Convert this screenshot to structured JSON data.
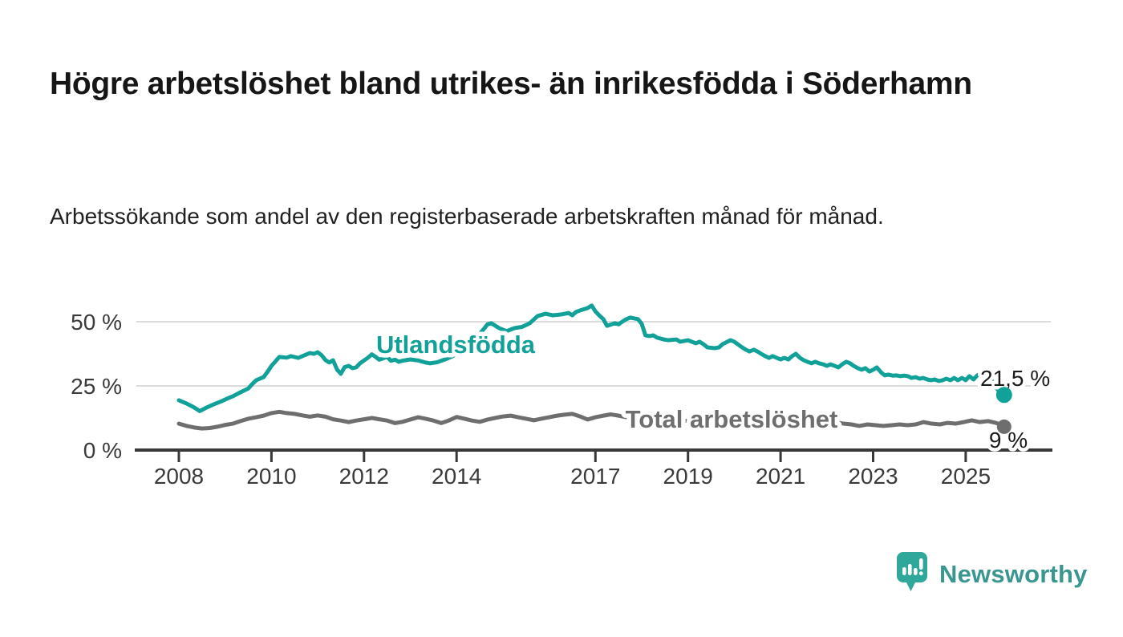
{
  "header": {
    "title": "Högre arbetslöshet bland utrikes- än inrikesfödda i Söderhamn",
    "subtitle": "Arbetssökande som andel av den registerbaserade arbetskraften månad för månad."
  },
  "footer": {
    "brand": "Newsworthy"
  },
  "colors": {
    "teal": "#12a198",
    "gray": "#6e6e6e",
    "axis_line": "#383838",
    "axis_text": "#3a3a3a",
    "grid": "#dcdcdc",
    "end_label_text": "#1b1b1b",
    "logo_fill": "#2fa79b",
    "brand_text": "#3a978f"
  },
  "chart_data": {
    "type": "line",
    "title": "Högre arbetslöshet bland utrikes- än inrikesfödda i Söderhamn",
    "subtitle": "Arbetssökande som andel av den registerbaserade arbetskraften månad för månad.",
    "legend": "inline-labels",
    "grid": "horizontal",
    "x_axis": {
      "range": [
        2007.9,
        2026.3
      ],
      "ticks": [
        2008,
        2010,
        2012,
        2014,
        2017,
        2019,
        2021,
        2023,
        2025
      ],
      "tick_labels": [
        "2008",
        "2010",
        "2012",
        "2014",
        "2017",
        "2019",
        "2021",
        "2023",
        "2025"
      ]
    },
    "y_axis": {
      "unit": "%",
      "range": [
        0,
        58
      ],
      "ticks": [
        0,
        25,
        50
      ],
      "tick_labels": [
        "0 %",
        "25 %",
        "50 %"
      ]
    },
    "series": [
      {
        "id": "utlandsfodda",
        "name": "Utlandsfödda",
        "color": "#12a198",
        "end_label": "21,5 %",
        "end_value": 21.5,
        "points": [
          [
            2008.0,
            19.4
          ],
          [
            2008.17,
            18.1
          ],
          [
            2008.33,
            16.6
          ],
          [
            2008.45,
            15.2
          ],
          [
            2008.58,
            16.4
          ],
          [
            2008.75,
            17.8
          ],
          [
            2008.92,
            19.0
          ],
          [
            2009.0,
            19.7
          ],
          [
            2009.17,
            21.0
          ],
          [
            2009.33,
            22.5
          ],
          [
            2009.5,
            24.0
          ],
          [
            2009.58,
            25.6
          ],
          [
            2009.67,
            27.2
          ],
          [
            2009.83,
            28.4
          ],
          [
            2009.92,
            30.6
          ],
          [
            2010.0,
            32.8
          ],
          [
            2010.08,
            34.4
          ],
          [
            2010.17,
            36.3
          ],
          [
            2010.33,
            36.0
          ],
          [
            2010.42,
            36.6
          ],
          [
            2010.58,
            35.9
          ],
          [
            2010.75,
            37.2
          ],
          [
            2010.83,
            37.8
          ],
          [
            2010.92,
            37.5
          ],
          [
            2011.0,
            38.1
          ],
          [
            2011.08,
            37.0
          ],
          [
            2011.17,
            35.0
          ],
          [
            2011.25,
            34.1
          ],
          [
            2011.33,
            35.0
          ],
          [
            2011.42,
            31.3
          ],
          [
            2011.5,
            29.7
          ],
          [
            2011.58,
            32.3
          ],
          [
            2011.67,
            32.8
          ],
          [
            2011.75,
            31.9
          ],
          [
            2011.83,
            32.2
          ],
          [
            2011.92,
            33.9
          ],
          [
            2012.0,
            34.9
          ],
          [
            2012.08,
            35.9
          ],
          [
            2012.17,
            37.3
          ],
          [
            2012.25,
            36.3
          ],
          [
            2012.33,
            35.2
          ],
          [
            2012.42,
            35.8
          ],
          [
            2012.5,
            36.3
          ],
          [
            2012.58,
            34.8
          ],
          [
            2012.67,
            35.2
          ],
          [
            2012.75,
            34.4
          ],
          [
            2012.83,
            34.8
          ],
          [
            2013.0,
            35.3
          ],
          [
            2013.17,
            34.9
          ],
          [
            2013.33,
            34.1
          ],
          [
            2013.42,
            33.8
          ],
          [
            2013.58,
            34.2
          ],
          [
            2013.75,
            35.3
          ],
          [
            2013.92,
            36.6
          ],
          [
            2014.08,
            38.8
          ],
          [
            2014.25,
            41.6
          ],
          [
            2014.42,
            44.4
          ],
          [
            2014.5,
            45.3
          ],
          [
            2014.58,
            47.0
          ],
          [
            2014.67,
            49.0
          ],
          [
            2014.75,
            49.4
          ],
          [
            2014.92,
            47.5
          ],
          [
            2015.08,
            46.3
          ],
          [
            2015.25,
            47.5
          ],
          [
            2015.42,
            48.0
          ],
          [
            2015.58,
            49.4
          ],
          [
            2015.75,
            52.2
          ],
          [
            2015.92,
            53.1
          ],
          [
            2016.08,
            52.5
          ],
          [
            2016.25,
            52.8
          ],
          [
            2016.42,
            53.4
          ],
          [
            2016.5,
            52.5
          ],
          [
            2016.58,
            53.8
          ],
          [
            2016.67,
            54.4
          ],
          [
            2016.83,
            55.3
          ],
          [
            2016.92,
            56.3
          ],
          [
            2017.0,
            54.0
          ],
          [
            2017.08,
            52.5
          ],
          [
            2017.17,
            51.0
          ],
          [
            2017.25,
            48.4
          ],
          [
            2017.42,
            49.4
          ],
          [
            2017.5,
            49.0
          ],
          [
            2017.58,
            50.0
          ],
          [
            2017.67,
            51.0
          ],
          [
            2017.75,
            51.6
          ],
          [
            2017.92,
            51.0
          ],
          [
            2018.0,
            49.2
          ],
          [
            2018.08,
            44.7
          ],
          [
            2018.17,
            44.4
          ],
          [
            2018.25,
            44.7
          ],
          [
            2018.33,
            43.8
          ],
          [
            2018.5,
            43.0
          ],
          [
            2018.58,
            42.8
          ],
          [
            2018.75,
            43.1
          ],
          [
            2018.83,
            42.2
          ],
          [
            2019.0,
            42.8
          ],
          [
            2019.08,
            42.2
          ],
          [
            2019.17,
            41.6
          ],
          [
            2019.25,
            42.2
          ],
          [
            2019.33,
            41.3
          ],
          [
            2019.42,
            40.0
          ],
          [
            2019.58,
            39.7
          ],
          [
            2019.67,
            40.0
          ],
          [
            2019.75,
            41.3
          ],
          [
            2019.92,
            42.8
          ],
          [
            2020.0,
            42.2
          ],
          [
            2020.17,
            40.0
          ],
          [
            2020.25,
            39.1
          ],
          [
            2020.33,
            38.4
          ],
          [
            2020.42,
            39.1
          ],
          [
            2020.5,
            38.4
          ],
          [
            2020.58,
            37.5
          ],
          [
            2020.67,
            36.6
          ],
          [
            2020.75,
            35.9
          ],
          [
            2020.83,
            36.6
          ],
          [
            2020.92,
            35.9
          ],
          [
            2021.0,
            35.3
          ],
          [
            2021.08,
            35.9
          ],
          [
            2021.17,
            35.3
          ],
          [
            2021.25,
            36.6
          ],
          [
            2021.33,
            37.5
          ],
          [
            2021.42,
            35.9
          ],
          [
            2021.5,
            35.0
          ],
          [
            2021.58,
            34.4
          ],
          [
            2021.67,
            33.8
          ],
          [
            2021.75,
            34.4
          ],
          [
            2021.83,
            33.8
          ],
          [
            2021.92,
            33.4
          ],
          [
            2022.0,
            32.8
          ],
          [
            2022.08,
            33.4
          ],
          [
            2022.17,
            32.8
          ],
          [
            2022.25,
            32.2
          ],
          [
            2022.33,
            33.4
          ],
          [
            2022.42,
            34.4
          ],
          [
            2022.5,
            33.8
          ],
          [
            2022.58,
            32.8
          ],
          [
            2022.67,
            31.9
          ],
          [
            2022.75,
            31.3
          ],
          [
            2022.83,
            31.9
          ],
          [
            2022.92,
            30.6
          ],
          [
            2023.0,
            31.3
          ],
          [
            2023.08,
            32.2
          ],
          [
            2023.17,
            30.3
          ],
          [
            2023.25,
            29.1
          ],
          [
            2023.33,
            29.4
          ],
          [
            2023.42,
            29.0
          ],
          [
            2023.5,
            29.1
          ],
          [
            2023.58,
            28.8
          ],
          [
            2023.67,
            29.0
          ],
          [
            2023.75,
            28.8
          ],
          [
            2023.83,
            28.1
          ],
          [
            2023.92,
            28.4
          ],
          [
            2024.0,
            27.8
          ],
          [
            2024.08,
            28.1
          ],
          [
            2024.17,
            27.5
          ],
          [
            2024.25,
            27.2
          ],
          [
            2024.33,
            27.5
          ],
          [
            2024.42,
            26.9
          ],
          [
            2024.5,
            27.2
          ],
          [
            2024.58,
            27.8
          ],
          [
            2024.67,
            27.2
          ],
          [
            2024.75,
            28.1
          ],
          [
            2024.83,
            27.2
          ],
          [
            2024.92,
            28.1
          ],
          [
            2025.0,
            27.2
          ],
          [
            2025.08,
            28.8
          ],
          [
            2025.17,
            27.5
          ],
          [
            2025.25,
            29.1
          ],
          [
            2025.33,
            29.7
          ],
          [
            2025.42,
            29.7
          ],
          [
            2025.55,
            27.5
          ],
          [
            2025.65,
            24.4
          ],
          [
            2025.75,
            22.3
          ],
          [
            2025.83,
            21.5
          ]
        ]
      },
      {
        "id": "total-arbetsloshet",
        "name": "Total arbetslöshet",
        "color": "#6e6e6e",
        "end_label": "9 %",
        "end_value": 9,
        "points": [
          [
            2008.0,
            10.3
          ],
          [
            2008.17,
            9.4
          ],
          [
            2008.33,
            8.8
          ],
          [
            2008.5,
            8.4
          ],
          [
            2008.67,
            8.6
          ],
          [
            2008.83,
            9.1
          ],
          [
            2009.0,
            9.8
          ],
          [
            2009.17,
            10.3
          ],
          [
            2009.33,
            11.3
          ],
          [
            2009.5,
            12.2
          ],
          [
            2009.67,
            12.8
          ],
          [
            2009.83,
            13.4
          ],
          [
            2010.0,
            14.4
          ],
          [
            2010.17,
            14.9
          ],
          [
            2010.33,
            14.4
          ],
          [
            2010.5,
            14.1
          ],
          [
            2010.67,
            13.5
          ],
          [
            2010.83,
            13.0
          ],
          [
            2011.0,
            13.5
          ],
          [
            2011.17,
            13.0
          ],
          [
            2011.33,
            12.0
          ],
          [
            2011.5,
            11.5
          ],
          [
            2011.67,
            10.9
          ],
          [
            2011.83,
            11.5
          ],
          [
            2012.0,
            12.0
          ],
          [
            2012.17,
            12.5
          ],
          [
            2012.33,
            12.0
          ],
          [
            2012.5,
            11.5
          ],
          [
            2012.67,
            10.5
          ],
          [
            2012.83,
            11.0
          ],
          [
            2013.0,
            11.9
          ],
          [
            2013.17,
            12.8
          ],
          [
            2013.33,
            12.2
          ],
          [
            2013.5,
            11.5
          ],
          [
            2013.67,
            10.5
          ],
          [
            2013.83,
            11.5
          ],
          [
            2014.0,
            12.9
          ],
          [
            2014.17,
            12.2
          ],
          [
            2014.33,
            11.5
          ],
          [
            2014.5,
            11.0
          ],
          [
            2014.67,
            11.9
          ],
          [
            2014.83,
            12.5
          ],
          [
            2015.0,
            13.1
          ],
          [
            2015.17,
            13.4
          ],
          [
            2015.33,
            12.8
          ],
          [
            2015.5,
            12.2
          ],
          [
            2015.67,
            11.6
          ],
          [
            2015.83,
            12.2
          ],
          [
            2016.0,
            12.8
          ],
          [
            2016.17,
            13.4
          ],
          [
            2016.33,
            13.8
          ],
          [
            2016.5,
            14.1
          ],
          [
            2016.67,
            13.1
          ],
          [
            2016.83,
            11.9
          ],
          [
            2017.0,
            12.8
          ],
          [
            2017.17,
            13.4
          ],
          [
            2017.33,
            13.9
          ],
          [
            2017.5,
            13.4
          ],
          [
            2017.67,
            12.8
          ],
          [
            2017.83,
            12.3
          ],
          [
            2018.0,
            12.5
          ],
          [
            2018.17,
            12.0
          ],
          [
            2018.33,
            11.6
          ],
          [
            2018.5,
            11.3
          ],
          [
            2018.67,
            11.0
          ],
          [
            2018.83,
            11.2
          ],
          [
            2019.0,
            11.4
          ],
          [
            2019.17,
            11.0
          ],
          [
            2019.33,
            10.8
          ],
          [
            2019.5,
            10.5
          ],
          [
            2019.67,
            10.6
          ],
          [
            2019.83,
            10.8
          ],
          [
            2020.0,
            11.0
          ],
          [
            2020.17,
            11.8
          ],
          [
            2020.33,
            12.4
          ],
          [
            2020.5,
            12.6
          ],
          [
            2020.67,
            12.4
          ],
          [
            2020.83,
            12.1
          ],
          [
            2021.0,
            12.0
          ],
          [
            2021.17,
            11.7
          ],
          [
            2021.33,
            11.4
          ],
          [
            2021.5,
            11.2
          ],
          [
            2021.67,
            11.0
          ],
          [
            2021.83,
            10.9
          ],
          [
            2022.0,
            10.8
          ],
          [
            2022.17,
            10.9
          ],
          [
            2022.36,
            10.3
          ],
          [
            2022.53,
            10.0
          ],
          [
            2022.7,
            9.4
          ],
          [
            2022.88,
            10.0
          ],
          [
            2023.05,
            9.7
          ],
          [
            2023.22,
            9.4
          ],
          [
            2023.4,
            9.7
          ],
          [
            2023.57,
            10.0
          ],
          [
            2023.74,
            9.7
          ],
          [
            2023.92,
            10.0
          ],
          [
            2024.09,
            10.9
          ],
          [
            2024.26,
            10.3
          ],
          [
            2024.44,
            10.0
          ],
          [
            2024.61,
            10.6
          ],
          [
            2024.78,
            10.3
          ],
          [
            2024.96,
            10.9
          ],
          [
            2025.13,
            11.6
          ],
          [
            2025.3,
            10.9
          ],
          [
            2025.48,
            11.3
          ],
          [
            2025.65,
            10.6
          ],
          [
            2025.75,
            10.0
          ],
          [
            2025.83,
            9.1
          ]
        ]
      }
    ]
  }
}
